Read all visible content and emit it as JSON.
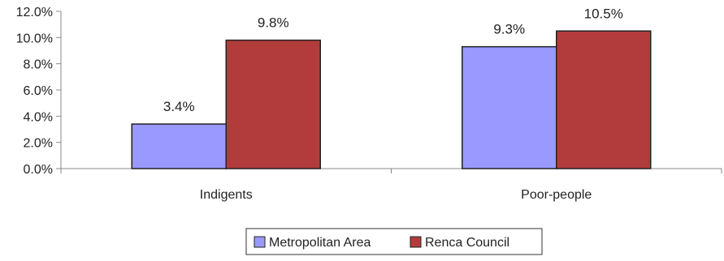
{
  "chart_data": {
    "type": "bar",
    "categories": [
      "Indigents",
      "Poor-people"
    ],
    "series": [
      {
        "name": "Metropolitan Area",
        "values": [
          3.4,
          9.3
        ],
        "labels": [
          "3.4%",
          "9.3%"
        ],
        "color": "#9999ff"
      },
      {
        "name": "Renca Council",
        "values": [
          9.8,
          10.5
        ],
        "labels": [
          "9.8%",
          "10.5%"
        ],
        "color": "#b23c3c"
      }
    ],
    "yticks": [
      "0.0%",
      "2.0%",
      "4.0%",
      "6.0%",
      "8.0%",
      "10.0%",
      "12.0%"
    ],
    "ylim": [
      0,
      12
    ],
    "ytick_step": 2,
    "grid": false,
    "legend_position": "bottom"
  }
}
